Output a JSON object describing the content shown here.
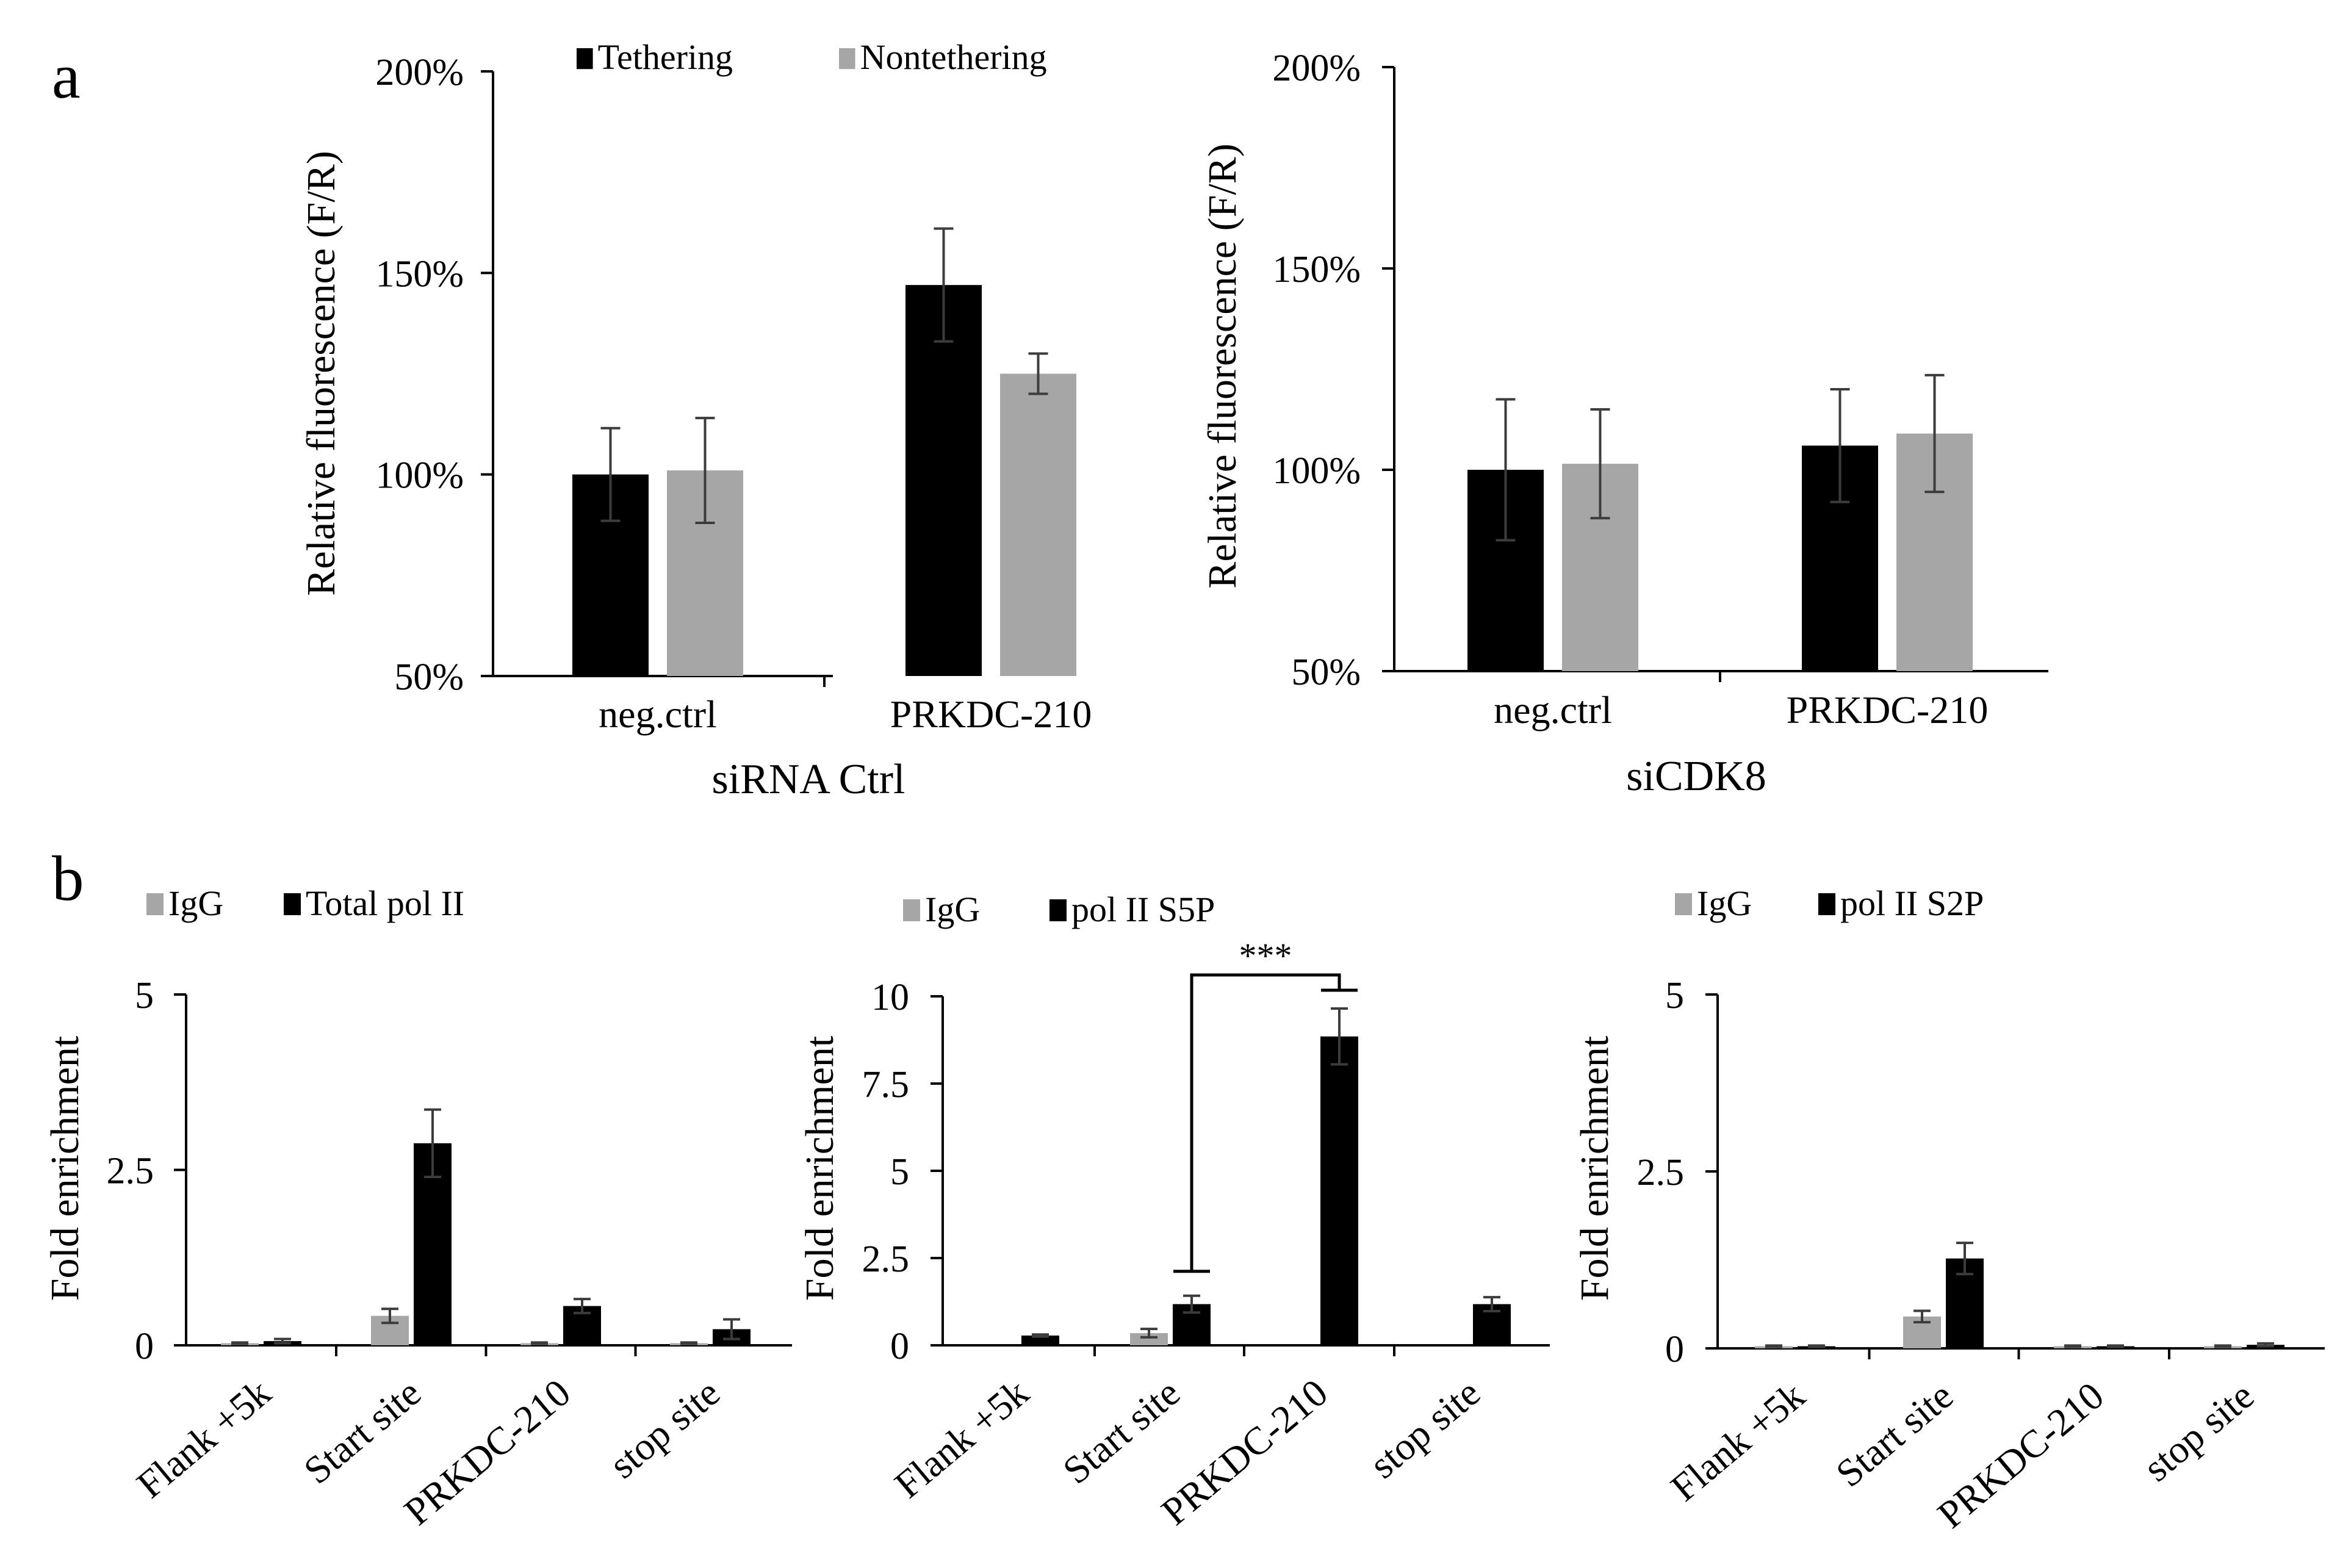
{
  "panel_labels": [
    "a",
    "b"
  ],
  "colors": {
    "black": "#000000",
    "gray": "#a6a6a6",
    "err": "#3c3c3c"
  },
  "chart_data": [
    {
      "id": "a1",
      "type": "bar",
      "title": "",
      "xlabel": "siRNA Ctrl",
      "ylabel": "Relative fluorescence (F/R)",
      "categories": [
        "neg.ctrl",
        "PRKDC-210"
      ],
      "series": [
        {
          "name": "Tethering",
          "color": "#000000",
          "values": [
            100,
            147
          ],
          "errors": [
            11.5,
            14
          ]
        },
        {
          "name": "Nontethering",
          "color": "#a6a6a6",
          "values": [
            101,
            125
          ],
          "errors": [
            13,
            5
          ]
        }
      ],
      "ylim": [
        50,
        200
      ],
      "yticks": [
        50,
        100,
        150,
        200
      ],
      "ytick_labels": [
        "50%",
        "100%",
        "150%",
        "200%"
      ],
      "legend": "top"
    },
    {
      "id": "a2",
      "type": "bar",
      "title": "",
      "xlabel": "siCDK8",
      "ylabel": "Relative fluorescence (F/R)",
      "categories": [
        "neg.ctrl",
        "PRKDC-210"
      ],
      "series": [
        {
          "name": "Tethering",
          "color": "#000000",
          "values": [
            100,
            106
          ],
          "errors": [
            17.5,
            14
          ]
        },
        {
          "name": "Nontethering",
          "color": "#a6a6a6",
          "values": [
            101.5,
            109
          ],
          "errors": [
            13.5,
            14.5
          ]
        }
      ],
      "ylim": [
        50,
        200
      ],
      "yticks": [
        50,
        100,
        150,
        200
      ],
      "ytick_labels": [
        "50%",
        "100%",
        "150%",
        "200%"
      ],
      "legend": "none"
    },
    {
      "id": "b1",
      "type": "bar",
      "title": "",
      "xlabel": "",
      "ylabel": "Fold enrichment",
      "categories": [
        "Flank +5k",
        "Start site",
        "PRKDC-210",
        "stop site"
      ],
      "series": [
        {
          "name": "IgG",
          "color": "#a6a6a6",
          "values": [
            0.03,
            0.42,
            0.03,
            0.03
          ],
          "errors": [
            0.01,
            0.1,
            0.01,
            0.01
          ]
        },
        {
          "name": "Total pol II",
          "color": "#000000",
          "values": [
            0.06,
            2.88,
            0.56,
            0.23
          ],
          "errors": [
            0.03,
            0.48,
            0.1,
            0.14
          ]
        }
      ],
      "ylim": [
        0,
        5
      ],
      "yticks": [
        0,
        2.5,
        5
      ],
      "ytick_labels": [
        "0",
        "2.5",
        "5"
      ],
      "legend": "top-left"
    },
    {
      "id": "b2",
      "type": "bar",
      "title": "",
      "xlabel": "",
      "ylabel": "Fold enrichment",
      "categories": [
        "Flank +5k",
        "Start site",
        "PRKDC-210",
        "stop site"
      ],
      "series": [
        {
          "name": "IgG",
          "color": "#a6a6a6",
          "values": [
            0,
            0.35,
            0,
            0
          ],
          "errors": [
            0,
            0.12,
            0,
            0
          ]
        },
        {
          "name": "pol II S5P",
          "color": "#000000",
          "values": [
            0.28,
            1.18,
            8.85,
            1.18
          ],
          "errors": [
            0.03,
            0.24,
            0.8,
            0.2
          ]
        }
      ],
      "ylim": [
        0,
        10
      ],
      "yticks": [
        0,
        2.5,
        5,
        7.5,
        10
      ],
      "ytick_labels": [
        "0",
        "2.5",
        "5",
        "7.5",
        "10"
      ],
      "legend": "top-left",
      "annotation": {
        "text": "***",
        "from_category": 1,
        "to_category": 2
      }
    },
    {
      "id": "b3",
      "type": "bar",
      "title": "",
      "xlabel": "",
      "ylabel": "Fold enrichment",
      "categories": [
        "Flank +5k",
        "Start site",
        "PRKDC-210",
        "stop site"
      ],
      "series": [
        {
          "name": "IgG",
          "color": "#a6a6a6",
          "values": [
            0.03,
            0.45,
            0.03,
            0.03
          ],
          "errors": [
            0.01,
            0.08,
            0.01,
            0.01
          ]
        },
        {
          "name": "pol II S2P",
          "color": "#000000",
          "values": [
            0.03,
            1.27,
            0.03,
            0.05
          ],
          "errors": [
            0.01,
            0.22,
            0.01,
            0.02
          ]
        }
      ],
      "ylim": [
        0,
        5
      ],
      "yticks": [
        0,
        2.5,
        5
      ],
      "ytick_labels": [
        "0",
        "2.5",
        "5"
      ],
      "legend": "top-left"
    }
  ]
}
